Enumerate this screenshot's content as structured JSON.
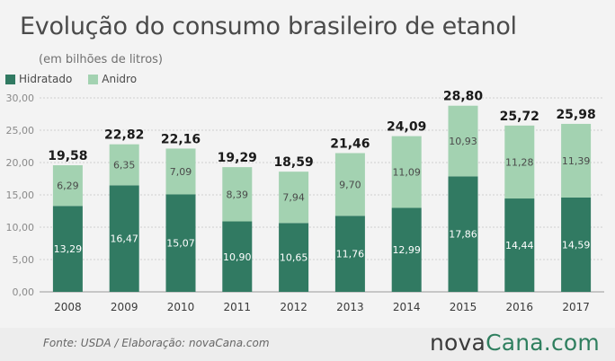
{
  "header": {
    "title": "Evolução do consumo brasileiro de etanol",
    "subtitle": "(em bilhões de litros)"
  },
  "colors": {
    "hidratado": "#317a62",
    "anidro": "#a3d2b1",
    "grid": "#cfcfcf",
    "axis_text": "#8a8a8a",
    "total_text": "#1a1a1a",
    "label_on_dark": "#ffffff",
    "label_on_light": "#4a4a4a"
  },
  "chart_data": {
    "type": "bar",
    "stacked": true,
    "categories": [
      "2008",
      "2009",
      "2010",
      "2011",
      "2012",
      "2013",
      "2014",
      "2015",
      "2016",
      "2017"
    ],
    "series": [
      {
        "name": "Hidratado",
        "values": [
          "13,29",
          "16,47",
          "15,07",
          "10,90",
          "10,65",
          "11,76",
          "12,99",
          "17,86",
          "14,44",
          "14,59"
        ]
      },
      {
        "name": "Anidro",
        "values": [
          "6,29",
          "6,35",
          "7,09",
          "8,39",
          "7,94",
          "9,70",
          "11,09",
          "10,93",
          "11,28",
          "11,39"
        ]
      }
    ],
    "totals": [
      "19,58",
      "22,82",
      "22,16",
      "19,29",
      "18,59",
      "21,46",
      "24,09",
      "28,80",
      "25,72",
      "25,98"
    ],
    "ylim": [
      0,
      30
    ],
    "yticks": [
      "0,00",
      "5,00",
      "10,00",
      "15,00",
      "20,00",
      "25,00",
      "30,00"
    ],
    "grid": true,
    "legend_position": "top-left"
  },
  "footer": {
    "source": "Fonte:  USDA / Elaboração:  novaCana.com",
    "logo_part1": "nova",
    "logo_part2": "Cana.com"
  }
}
